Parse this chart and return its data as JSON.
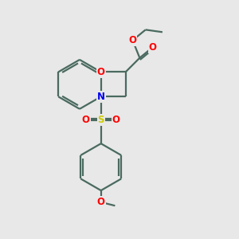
{
  "background_color": "#e8e8e8",
  "bond_color": "#4a6a60",
  "oxygen_color": "#ff0000",
  "nitrogen_color": "#0000ee",
  "sulfur_color": "#cccc00",
  "line_width": 1.6,
  "figsize": [
    3.0,
    3.0
  ],
  "dpi": 100,
  "xlim": [
    0,
    10
  ],
  "ylim": [
    0,
    10
  ]
}
